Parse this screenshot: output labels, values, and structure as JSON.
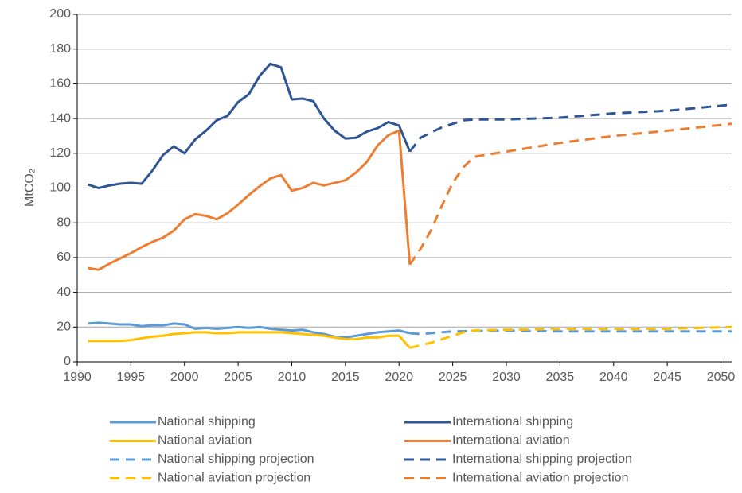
{
  "chart_data": {
    "type": "line",
    "ylabel": "MtCO₂",
    "xlim": [
      1990,
      2051
    ],
    "xticks": [
      1990,
      1995,
      2000,
      2005,
      2010,
      2015,
      2020,
      2025,
      2030,
      2035,
      2040,
      2045,
      2050
    ],
    "ylim": [
      0,
      200
    ],
    "yticks": [
      0,
      20,
      40,
      60,
      80,
      100,
      120,
      140,
      160,
      180,
      200
    ],
    "grid": true,
    "legend": "bottom",
    "series": [
      {
        "name": "National shipping",
        "color": "#5b9bd5",
        "dashed": false,
        "x": [
          1991,
          1992,
          1993,
          1994,
          1995,
          1996,
          1997,
          1998,
          1999,
          2000,
          2001,
          2002,
          2003,
          2004,
          2005,
          2006,
          2007,
          2008,
          2009,
          2010,
          2011,
          2012,
          2013,
          2014,
          2015,
          2016,
          2017,
          2018,
          2019,
          2020,
          2021
        ],
        "values": [
          22,
          22.5,
          22,
          21.5,
          21.5,
          20.5,
          21,
          21,
          22,
          21.5,
          19,
          19.5,
          19,
          19.5,
          20,
          19.5,
          20,
          19,
          18.5,
          18,
          18.5,
          17,
          16,
          14.5,
          14,
          15,
          16,
          17,
          17.5,
          18,
          16.5
        ]
      },
      {
        "name": "International shipping",
        "color": "#2f5597",
        "dashed": false,
        "x": [
          1991,
          1992,
          1993,
          1994,
          1995,
          1996,
          1997,
          1998,
          1999,
          2000,
          2001,
          2002,
          2003,
          2004,
          2005,
          2006,
          2007,
          2008,
          2009,
          2010,
          2011,
          2012,
          2013,
          2014,
          2015,
          2016,
          2017,
          2018,
          2019,
          2020,
          2021
        ],
        "values": [
          102,
          100,
          101.5,
          102.5,
          103,
          102.5,
          110,
          119,
          124,
          120,
          128,
          133,
          139,
          141.5,
          149.5,
          154,
          164.5,
          171.5,
          169.5,
          151,
          151.5,
          150,
          140,
          133,
          128.5,
          129,
          132.5,
          134.5,
          138,
          136,
          121
        ]
      },
      {
        "name": "National aviation",
        "color": "#ffc000",
        "dashed": false,
        "x": [
          1991,
          1992,
          1993,
          1994,
          1995,
          1996,
          1997,
          1998,
          1999,
          2000,
          2001,
          2002,
          2003,
          2004,
          2005,
          2006,
          2007,
          2008,
          2009,
          2010,
          2011,
          2012,
          2013,
          2014,
          2015,
          2016,
          2017,
          2018,
          2019,
          2020,
          2021
        ],
        "values": [
          12,
          12,
          12,
          12,
          12.5,
          13.5,
          14.5,
          15,
          16,
          16.5,
          17,
          17,
          16.5,
          16.5,
          17,
          17,
          17,
          17,
          17,
          16.5,
          16,
          15.5,
          15,
          14,
          13,
          13,
          14,
          14,
          15,
          15,
          8
        ]
      },
      {
        "name": "International aviation",
        "color": "#ed7d31",
        "dashed": false,
        "x": [
          1991,
          1992,
          1993,
          1994,
          1995,
          1996,
          1997,
          1998,
          1999,
          2000,
          2001,
          2002,
          2003,
          2004,
          2005,
          2006,
          2007,
          2008,
          2009,
          2010,
          2011,
          2012,
          2013,
          2014,
          2015,
          2016,
          2017,
          2018,
          2019,
          2020,
          2021
        ],
        "values": [
          54,
          53,
          56.5,
          59.5,
          62.5,
          66,
          69,
          71.5,
          75.5,
          82,
          85,
          84,
          82,
          85.5,
          90.5,
          96,
          101,
          105.5,
          107.5,
          98.5,
          100,
          103,
          101.5,
          103,
          104.5,
          109,
          115,
          124.5,
          130.5,
          133,
          56
        ]
      },
      {
        "name": "National shipping projection",
        "color": "#5b9bd5",
        "dashed": true,
        "x": [
          2021,
          2022,
          2025,
          2030,
          2035,
          2040,
          2045,
          2051
        ],
        "values": [
          16.5,
          16,
          17.5,
          18,
          17.5,
          17.5,
          17.5,
          17.5
        ]
      },
      {
        "name": "International shipping projection",
        "color": "#2f5597",
        "dashed": true,
        "x": [
          2021,
          2022,
          2023,
          2024,
          2025,
          2026,
          2027,
          2030,
          2035,
          2040,
          2045,
          2051
        ],
        "values": [
          121,
          129,
          132,
          135,
          137,
          139,
          139.5,
          139.5,
          140.5,
          143,
          144.5,
          148
        ]
      },
      {
        "name": "National aviation projection",
        "color": "#ffc000",
        "dashed": true,
        "x": [
          2021,
          2022,
          2023,
          2024,
          2025,
          2026,
          2027,
          2030,
          2035,
          2040,
          2045,
          2051
        ],
        "values": [
          8,
          9.5,
          11,
          13,
          15,
          17,
          18,
          18.5,
          19,
          19,
          19,
          20
        ]
      },
      {
        "name": "International aviation projection",
        "color": "#ed7d31",
        "dashed": true,
        "x": [
          2021,
          2022,
          2023,
          2024,
          2025,
          2026,
          2027,
          2028,
          2030,
          2035,
          2040,
          2045,
          2051
        ],
        "values": [
          56,
          65,
          76,
          90,
          103,
          112,
          118,
          119,
          121,
          126,
          130,
          133,
          137
        ]
      }
    ]
  }
}
